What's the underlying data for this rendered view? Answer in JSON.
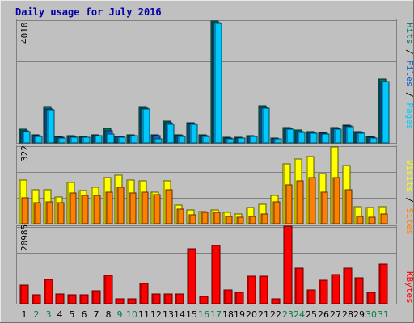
{
  "title": "Daily usage for July 2016",
  "colors": {
    "background": "#c0c0c0",
    "title": "#0000a8",
    "pages": "#00c8ff",
    "files": "#1464c8",
    "hits": "#007860",
    "visits": "#ffff00",
    "sites": "#ff8000",
    "kbytes": "#ff0000",
    "weekend_label": "#008040",
    "weekday_label": "#000000"
  },
  "chart_data": [
    {
      "type": "bar",
      "name": "hits-files-pages",
      "ymax_label": "4010",
      "ylim": [
        0,
        4010
      ],
      "categories": [
        "1",
        "2",
        "3",
        "4",
        "5",
        "6",
        "7",
        "8",
        "9",
        "10",
        "11",
        "12",
        "13",
        "14",
        "15",
        "16",
        "17",
        "18",
        "19",
        "20",
        "21",
        "22",
        "23",
        "24",
        "25",
        "26",
        "27",
        "28",
        "29",
        "30",
        "31"
      ],
      "weekend": [
        "2",
        "3",
        "9",
        "10",
        "16",
        "17",
        "23",
        "24",
        "30",
        "31"
      ],
      "legend": [
        "Pages",
        "Files",
        "Hits"
      ],
      "series": [
        {
          "name": "Hits",
          "color_key": "hits",
          "values": [
            445,
            260,
            1170,
            205,
            230,
            210,
            270,
            470,
            220,
            260,
            1170,
            250,
            710,
            260,
            660,
            250,
            3965,
            175,
            180,
            240,
            1200,
            150,
            510,
            420,
            380,
            340,
            500,
            580,
            380,
            210,
            2070
          ]
        },
        {
          "name": "Files",
          "color_key": "files",
          "values": [
            390,
            235,
            1110,
            180,
            205,
            190,
            245,
            400,
            200,
            235,
            1120,
            225,
            650,
            235,
            620,
            225,
            3915,
            150,
            160,
            215,
            1150,
            130,
            470,
            380,
            350,
            310,
            470,
            540,
            345,
            185,
            2000
          ]
        },
        {
          "name": "Pages",
          "color_key": "pages",
          "values": [
            375,
            220,
            1080,
            170,
            195,
            180,
            230,
            300,
            190,
            225,
            1110,
            140,
            600,
            215,
            610,
            210,
            3890,
            140,
            150,
            205,
            1130,
            125,
            440,
            350,
            325,
            290,
            450,
            515,
            315,
            150,
            1980
          ]
        }
      ]
    },
    {
      "type": "bar",
      "name": "visits-sites",
      "ymax_label": "322",
      "ylim": [
        0,
        322
      ],
      "legend": [
        "Sites",
        "Visits"
      ],
      "series": [
        {
          "name": "Visits",
          "color_key": "visits",
          "values": [
            180,
            140,
            140,
            110,
            170,
            135,
            150,
            190,
            200,
            180,
            175,
            130,
            175,
            75,
            55,
            50,
            55,
            45,
            40,
            65,
            80,
            115,
            245,
            265,
            275,
            205,
            315,
            240,
            70,
            65,
            70
          ]
        },
        {
          "name": "Sites",
          "color_key": "sites",
          "values": [
            105,
            85,
            90,
            85,
            125,
            115,
            115,
            130,
            150,
            125,
            130,
            120,
            140,
            60,
            35,
            45,
            45,
            30,
            25,
            30,
            40,
            90,
            160,
            175,
            190,
            130,
            190,
            140,
            30,
            25,
            40
          ]
        }
      ]
    },
    {
      "type": "bar",
      "name": "kbytes",
      "ymax_label": "20985",
      "ylim": [
        0,
        20985
      ],
      "legend": [
        "KBytes"
      ],
      "series": [
        {
          "name": "KBytes",
          "color_key": "kbytes",
          "values": [
            5000,
            2300,
            6500,
            2600,
            2300,
            2500,
            3400,
            7600,
            1300,
            1300,
            5400,
            2600,
            2700,
            2700,
            14800,
            2000,
            15700,
            3800,
            3000,
            7500,
            7500,
            1400,
            21000,
            9600,
            3700,
            6300,
            7800,
            9600,
            7100,
            3000,
            10700
          ]
        }
      ]
    }
  ]
}
